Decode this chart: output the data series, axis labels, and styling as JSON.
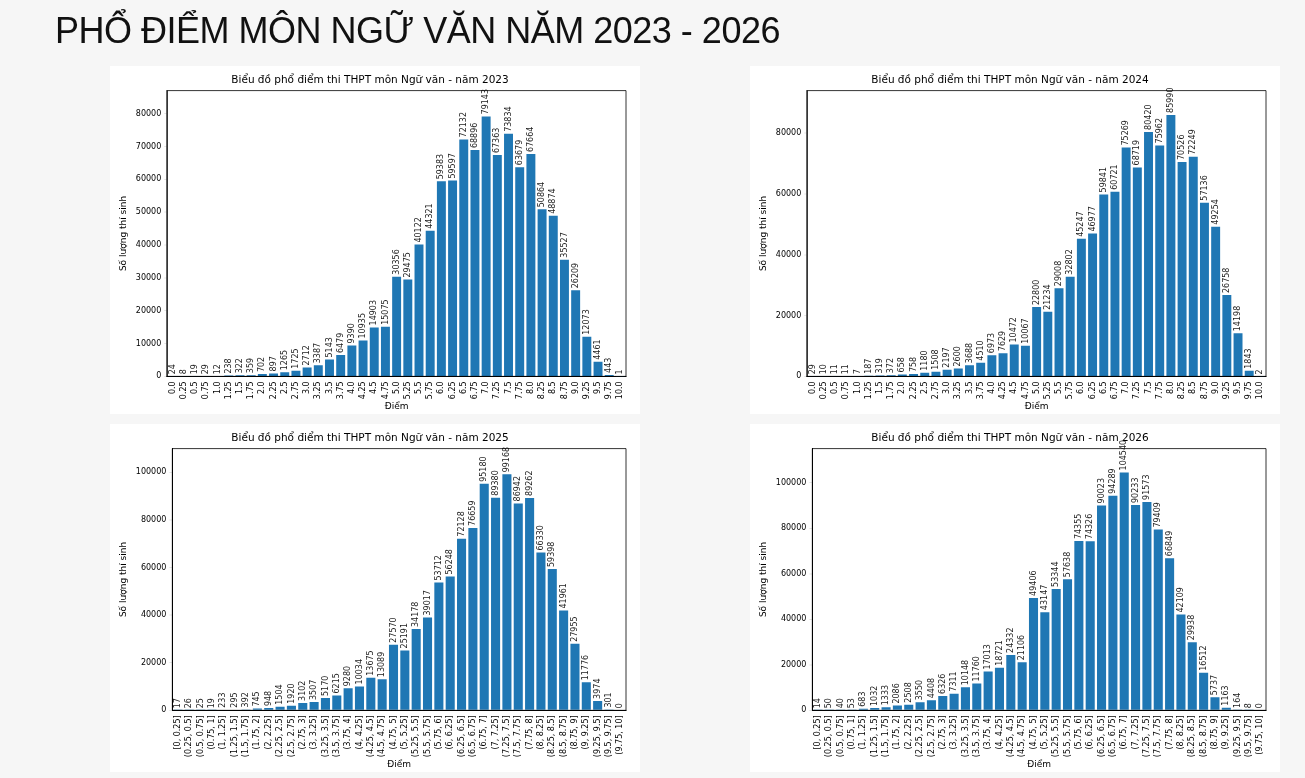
{
  "chart_data": [
    {
      "type": "other",
      "title": "PHỔ ĐIỂM MÔN NGỮ VĂN NĂM 2023 - 2026"
    },
    {
      "type": "bar",
      "title": "Biểu đồ phổ điểm thi THPT môn Ngữ văn - năm 2023",
      "xlabel": "Điểm",
      "ylabel": "Số lượng thí sinh",
      "color": "#1f77b4",
      "data_labels": true,
      "ylim": [
        0,
        87000
      ],
      "yticks": [
        0,
        10000,
        20000,
        30000,
        40000,
        50000,
        60000,
        70000,
        80000
      ],
      "categories": [
        "0.0",
        "0.25",
        "0.5",
        "0.75",
        "1.0",
        "1.25",
        "1.5",
        "1.75",
        "2.0",
        "2.25",
        "2.5",
        "2.75",
        "3.0",
        "3.25",
        "3.5",
        "3.75",
        "4.0",
        "4.25",
        "4.5",
        "4.75",
        "5.0",
        "5.25",
        "5.5",
        "5.75",
        "6.0",
        "6.25",
        "6.5",
        "6.75",
        "7.0",
        "7.25",
        "7.5",
        "7.75",
        "8.0",
        "8.25",
        "8.5",
        "8.75",
        "9.0",
        "9.25",
        "9.5",
        "9.75",
        "10.0"
      ],
      "values": [
        24,
        8,
        19,
        29,
        12,
        238,
        322,
        359,
        702,
        897,
        1265,
        1725,
        2712,
        3387,
        5143,
        6479,
        9390,
        10935,
        14903,
        15075,
        30356,
        29475,
        40122,
        44321,
        59383,
        59597,
        72132,
        68896,
        79143,
        67363,
        73834,
        63679,
        67664,
        50864,
        48874,
        35527,
        26209,
        12073,
        4461,
        443,
        1
      ]
    },
    {
      "type": "bar",
      "title": "Biểu đồ phổ điểm thi THPT môn Ngữ văn - năm 2024",
      "xlabel": "Điểm",
      "ylabel": "Số lượng thí sinh",
      "color": "#1f77b4",
      "data_labels": true,
      "ylim": [
        0,
        94000
      ],
      "yticks": [
        0,
        20000,
        40000,
        60000,
        80000
      ],
      "categories": [
        "0.0",
        "0.25",
        "0.5",
        "0.75",
        "1.0",
        "1.25",
        "1.5",
        "1.75",
        "2.0",
        "2.25",
        "2.5",
        "2.75",
        "3.0",
        "3.25",
        "3.5",
        "3.75",
        "4.0",
        "4.25",
        "4.5",
        "4.75",
        "5.0",
        "5.25",
        "5.5",
        "5.75",
        "6.0",
        "6.25",
        "6.5",
        "6.75",
        "7.0",
        "7.25",
        "7.5",
        "7.75",
        "8.0",
        "8.25",
        "8.5",
        "8.75",
        "9.0",
        "9.25",
        "9.5",
        "9.75",
        "10.0"
      ],
      "values": [
        29,
        10,
        11,
        11,
        7,
        187,
        319,
        372,
        658,
        758,
        1180,
        1508,
        2197,
        2600,
        3688,
        4510,
        6973,
        7629,
        10472,
        10067,
        22800,
        21234,
        29008,
        32802,
        45247,
        46977,
        59841,
        60721,
        75269,
        68719,
        80420,
        75962,
        85990,
        70526,
        72249,
        57136,
        49254,
        26758,
        14198,
        1843,
        2
      ]
    },
    {
      "type": "bar",
      "title": "Biểu đồ phổ điểm thi THPT môn Ngữ văn - năm 2025",
      "xlabel": "Điểm",
      "ylabel": "Số lượng thí sinh",
      "color": "#1f77b4",
      "data_labels": true,
      "ylim": [
        0,
        110000
      ],
      "yticks": [
        0,
        20000,
        40000,
        60000,
        80000,
        100000
      ],
      "categories": [
        "[0, 0.25]",
        "(0.25, 0.5]",
        "(0.5, 0.75]",
        "(0.75, 1]",
        "(1, 1.25]",
        "(1.25, 1.5]",
        "(1.5, 1.75]",
        "(1.75, 2]",
        "(2, 2.25]",
        "(2.25, 2.5]",
        "(2.5, 2.75]",
        "(2.75, 3]",
        "(3, 3.25]",
        "(3.25, 3.5]",
        "(3.5, 3.75]",
        "(3.75, 4]",
        "(4, 4.25]",
        "(4.25, 4.5]",
        "(4.5, 4.75]",
        "(4.75, 5]",
        "(5, 5.25]",
        "(5.25, 5.5]",
        "(5.5, 5.75]",
        "(5.75, 6]",
        "(6, 6.25]",
        "(6.25, 6.5]",
        "(6.5, 6.75]",
        "(6.75, 7]",
        "(7, 7.25]",
        "(7.25, 7.5]",
        "(7.5, 7.75]",
        "(7.75, 8]",
        "(8, 8.25]",
        "(8.25, 8.5]",
        "(8.5, 8.75]",
        "(8.75, 9]",
        "(9, 9.25]",
        "(9.25, 9.5]",
        "(9.5, 9.75]",
        "(9.75, 10]"
      ],
      "values": [
        17,
        26,
        25,
        19,
        233,
        295,
        392,
        745,
        948,
        1504,
        1920,
        3102,
        3507,
        5170,
        6215,
        9280,
        10034,
        13675,
        13089,
        27570,
        25191,
        34178,
        39017,
        53712,
        56248,
        72128,
        76659,
        95180,
        89380,
        99168,
        86942,
        89262,
        66330,
        59398,
        41961,
        27955,
        11776,
        3974,
        301,
        0
      ]
    },
    {
      "type": "bar",
      "title": "Biểu đồ phổ điểm thi THPT môn Ngữ văn - năm 2026",
      "xlabel": "Điểm",
      "ylabel": "Số lượng thí sinh",
      "color": "#1f77b4",
      "data_labels": true,
      "ylim": [
        0,
        115000
      ],
      "yticks": [
        0,
        20000,
        40000,
        60000,
        80000,
        100000
      ],
      "categories": [
        "[0, 0.25]",
        "(0.25, 0.5]",
        "(0.5, 0.75]",
        "(0.75, 1]",
        "(1, 1.25]",
        "(1.25, 1.5]",
        "(1.5, 1.75]",
        "(1.75, 2]",
        "(2, 2.25]",
        "(2.25, 2.5]",
        "(2.5, 2.75]",
        "(2.75, 3]",
        "(3, 3.25]",
        "(3.25, 3.5]",
        "(3.5, 3.75]",
        "(3.75, 4]",
        "(4, 4.25]",
        "(4.25, 4.5]",
        "(4.5, 4.75]",
        "(4.75, 5]",
        "(5, 5.25]",
        "(5.25, 5.5]",
        "(5.5, 5.75]",
        "(5.75, 6]",
        "(6, 6.25]",
        "(6.25, 6.5]",
        "(6.5, 6.75]",
        "(6.75, 7]",
        "(7, 7.25]",
        "(7.25, 7.5]",
        "(7.5, 7.75]",
        "(7.75, 8]",
        "(8, 8.25]",
        "(8.25, 8.5]",
        "(8.5, 8.75]",
        "(8.75, 9]",
        "(9, 9.25]",
        "(9.25, 9.5]",
        "(9.5, 9.75]",
        "(9.75, 10]"
      ],
      "values": [
        14,
        50,
        40,
        53,
        683,
        1032,
        1333,
        2086,
        2508,
        3550,
        4408,
        6326,
        7311,
        10148,
        11760,
        17013,
        18721,
        24332,
        21106,
        49406,
        43147,
        53344,
        57638,
        74355,
        74326,
        90023,
        94289,
        104540,
        90233,
        91573,
        79409,
        66849,
        42109,
        29938,
        16512,
        5737,
        1163,
        164,
        8,
        0
      ]
    }
  ]
}
